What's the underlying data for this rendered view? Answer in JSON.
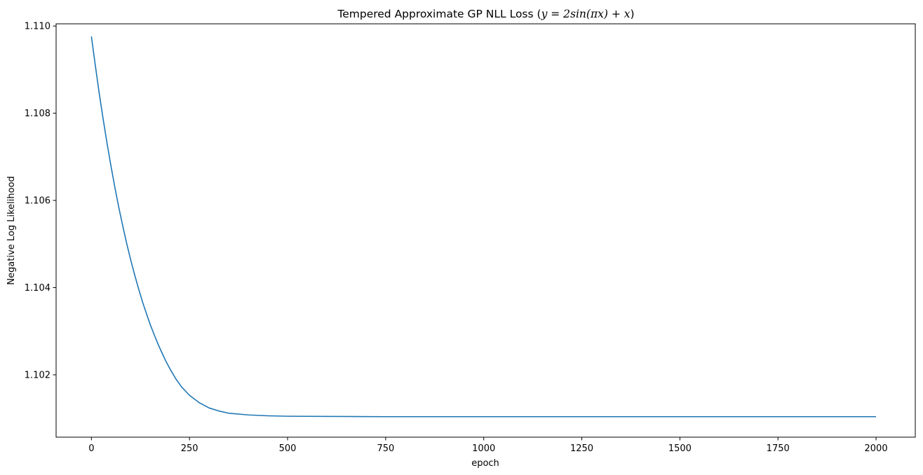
{
  "chart_data": {
    "type": "line",
    "title": {
      "prefix": "Tempered Approximate GP NLL Loss (",
      "math": "y = 2sin(πx) + x",
      "suffix": ")"
    },
    "xlabel": "epoch",
    "ylabel": "Negative Log Likelihood",
    "xlim": [
      -90,
      2100
    ],
    "ylim": [
      1.10057,
      1.11005
    ],
    "xticks": [
      0,
      250,
      500,
      750,
      1000,
      1250,
      1500,
      1750,
      2000
    ],
    "yticks": [
      1.102,
      1.104,
      1.106,
      1.108,
      1.11
    ],
    "ytick_labels": [
      "1.102",
      "1.104",
      "1.106",
      "1.108",
      "1.110"
    ],
    "grid": false,
    "series": [
      {
        "color": "#1f77b4",
        "x": [
          0,
          10,
          20,
          30,
          40,
          50,
          60,
          70,
          80,
          90,
          100,
          110,
          120,
          130,
          140,
          150,
          160,
          170,
          180,
          190,
          200,
          215,
          230,
          250,
          275,
          300,
          325,
          350,
          400,
          450,
          500,
          750,
          1000,
          1250,
          1500,
          1750,
          2000
        ],
        "y": [
          1.10976,
          1.10909,
          1.10845,
          1.10786,
          1.1073,
          1.10678,
          1.10629,
          1.10583,
          1.10541,
          1.10501,
          1.10464,
          1.1043,
          1.10398,
          1.10368,
          1.10341,
          1.10315,
          1.10292,
          1.1027,
          1.1025,
          1.10231,
          1.10214,
          1.10191,
          1.10172,
          1.10153,
          1.10136,
          1.10124,
          1.10117,
          1.10112,
          1.10108,
          1.10106,
          1.10105,
          1.10104,
          1.10104,
          1.10104,
          1.10104,
          1.10104,
          1.10104
        ]
      }
    ]
  }
}
